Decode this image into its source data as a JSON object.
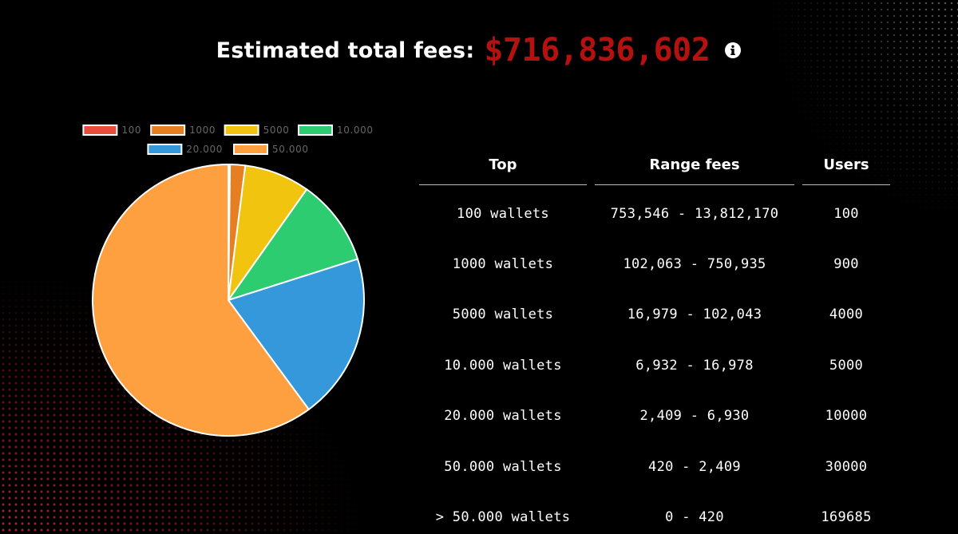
{
  "header": {
    "label": "Estimated total fees:",
    "value": "$716,836,602",
    "info_icon": "info-icon"
  },
  "chart_data": {
    "type": "pie",
    "title": "",
    "legend_position": "top",
    "labels": [
      "100",
      "1000",
      "5000",
      "10.000",
      "20.000",
      "50.000"
    ],
    "values": [
      0.2,
      1.8,
      7.8,
      10.3,
      19.8,
      60.1
    ],
    "colors": [
      "#e74c3c",
      "#e67e22",
      "#f1c40f",
      "#2ecc71",
      "#3498db",
      "#ffa040"
    ]
  },
  "table": {
    "headers": [
      "Top",
      "Range fees",
      "Users"
    ],
    "rows": [
      [
        "100 wallets",
        "753,546 - 13,812,170",
        "100"
      ],
      [
        "1000 wallets",
        "102,063 - 750,935",
        "900"
      ],
      [
        "5000 wallets",
        "16,979 - 102,043",
        "4000"
      ],
      [
        "10.000 wallets",
        "6,932 - 16,978",
        "5000"
      ],
      [
        "20.000 wallets",
        "2,409 - 6,930",
        "10000"
      ],
      [
        "50.000 wallets",
        "420 - 2,409",
        "30000"
      ],
      [
        "> 50.000 wallets",
        "0 - 420",
        "169685"
      ]
    ]
  }
}
